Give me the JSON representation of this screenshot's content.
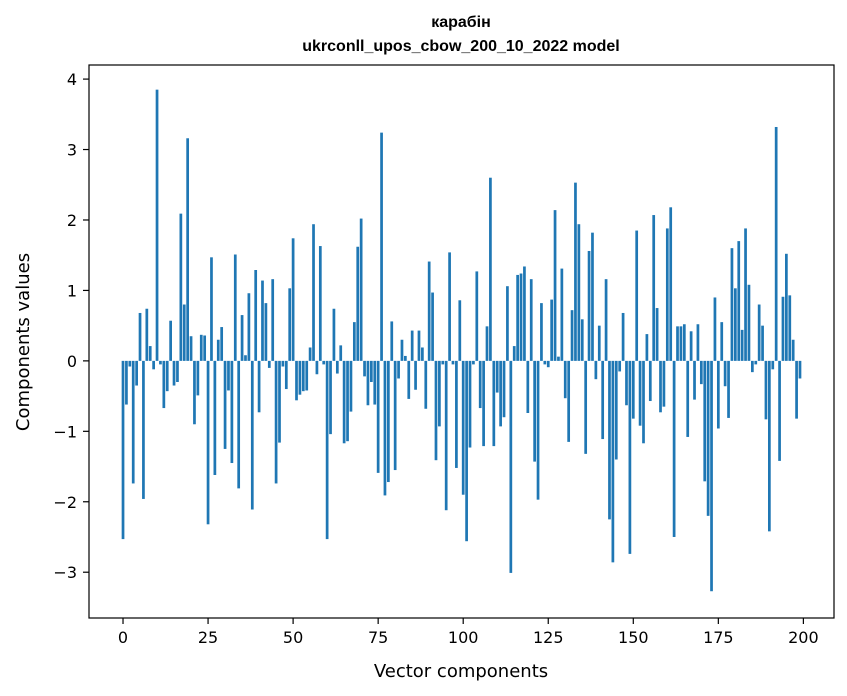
{
  "chart_data": {
    "type": "bar",
    "title": "карабін",
    "subtitle": "ukrconll_upos_cbow_200_10_2022 model",
    "xlabel": "Vector components",
    "ylabel": "Components values",
    "xlim": [
      -10,
      209
    ],
    "ylim": [
      -3.65,
      4.2
    ],
    "xticks": [
      0,
      25,
      50,
      75,
      100,
      125,
      150,
      175,
      200
    ],
    "yticks": [
      -3,
      -2,
      -1,
      0,
      1,
      2,
      3,
      4
    ],
    "grid": false,
    "bar_color": "#1f77b4",
    "x": [
      0,
      1,
      2,
      3,
      4,
      5,
      6,
      7,
      8,
      9,
      10,
      11,
      12,
      13,
      14,
      15,
      16,
      17,
      18,
      19,
      20,
      21,
      22,
      23,
      24,
      25,
      26,
      27,
      28,
      29,
      30,
      31,
      32,
      33,
      34,
      35,
      36,
      37,
      38,
      39,
      40,
      41,
      42,
      43,
      44,
      45,
      46,
      47,
      48,
      49,
      50,
      51,
      52,
      53,
      54,
      55,
      56,
      57,
      58,
      59,
      60,
      61,
      62,
      63,
      64,
      65,
      66,
      67,
      68,
      69,
      70,
      71,
      72,
      73,
      74,
      75,
      76,
      77,
      78,
      79,
      80,
      81,
      82,
      83,
      84,
      85,
      86,
      87,
      88,
      89,
      90,
      91,
      92,
      93,
      94,
      95,
      96,
      97,
      98,
      99,
      100,
      101,
      102,
      103,
      104,
      105,
      106,
      107,
      108,
      109,
      110,
      111,
      112,
      113,
      114,
      115,
      116,
      117,
      118,
      119,
      120,
      121,
      122,
      123,
      124,
      125,
      126,
      127,
      128,
      129,
      130,
      131,
      132,
      133,
      134,
      135,
      136,
      137,
      138,
      139,
      140,
      141,
      142,
      143,
      144,
      145,
      146,
      147,
      148,
      149,
      150,
      151,
      152,
      153,
      154,
      155,
      156,
      157,
      158,
      159,
      160,
      161,
      162,
      163,
      164,
      165,
      166,
      167,
      168,
      169,
      170,
      171,
      172,
      173,
      174,
      175,
      176,
      177,
      178,
      179,
      180,
      181,
      182,
      183,
      184,
      185,
      186,
      187,
      188,
      189,
      190,
      191,
      192,
      193,
      194,
      195,
      196,
      197,
      198,
      199
    ],
    "values": [
      -2.53,
      -0.62,
      -0.08,
      -1.74,
      -0.35,
      0.68,
      -1.96,
      0.74,
      0.21,
      -0.12,
      3.85,
      -0.05,
      -0.67,
      -0.43,
      0.57,
      -0.35,
      -0.3,
      2.09,
      0.8,
      3.16,
      0.35,
      -0.9,
      -0.49,
      0.37,
      0.36,
      -2.32,
      1.47,
      -1.62,
      0.3,
      0.48,
      -1.25,
      -0.42,
      -1.45,
      1.51,
      -1.81,
      0.65,
      0.08,
      0.96,
      -2.11,
      1.29,
      -0.73,
      1.14,
      0.82,
      -0.1,
      1.16,
      -1.74,
      -1.16,
      -0.08,
      -0.4,
      1.03,
      1.74,
      -0.56,
      -0.48,
      -0.43,
      -0.42,
      0.19,
      1.94,
      -0.19,
      1.63,
      -0.05,
      -2.53,
      -1.04,
      0.74,
      -0.18,
      0.22,
      -1.17,
      -1.14,
      -0.72,
      0.55,
      1.62,
      2.02,
      -0.22,
      -0.63,
      -0.3,
      -0.62,
      -1.59,
      3.24,
      -1.91,
      -1.72,
      0.56,
      -1.55,
      -0.25,
      0.3,
      0.07,
      -0.54,
      0.43,
      -0.41,
      0.43,
      0.19,
      -0.68,
      1.41,
      0.97,
      -1.41,
      -0.93,
      -0.05,
      -2.12,
      1.54,
      -0.05,
      -1.52,
      0.86,
      -1.9,
      -2.56,
      -1.23,
      -0.05,
      1.27,
      -0.67,
      -1.21,
      0.49,
      2.6,
      -1.21,
      -0.45,
      -0.93,
      -0.8,
      1.06,
      -3.01,
      0.21,
      1.22,
      1.24,
      1.34,
      -0.74,
      1.16,
      -1.43,
      -1.97,
      0.82,
      -0.05,
      -0.09,
      0.87,
      2.14,
      0.06,
      1.31,
      -0.53,
      -1.15,
      0.72,
      2.53,
      1.94,
      0.59,
      -1.32,
      1.56,
      1.82,
      -0.26,
      0.5,
      -1.11,
      1.16,
      -2.25,
      -2.86,
      -1.4,
      -0.15,
      0.68,
      -0.63,
      -2.74,
      -0.82,
      1.85,
      -0.92,
      -1.17,
      0.38,
      -0.57,
      2.07,
      0.75,
      -0.73,
      -0.65,
      1.88,
      2.18,
      -2.5,
      0.49,
      0.49,
      0.52,
      -1.08,
      0.42,
      -0.55,
      0.52,
      -0.33,
      -1.71,
      -2.2,
      -3.27,
      0.9,
      -0.96,
      0.55,
      -0.36,
      -0.81,
      1.6,
      1.03,
      1.7,
      0.44,
      1.88,
      1.08,
      -0.16,
      -0.05,
      0.8,
      0.5,
      -0.83,
      -2.42,
      -0.12,
      3.32,
      -1.42,
      0.91,
      1.52,
      0.93,
      0.3,
      -0.82,
      -0.25
    ]
  }
}
